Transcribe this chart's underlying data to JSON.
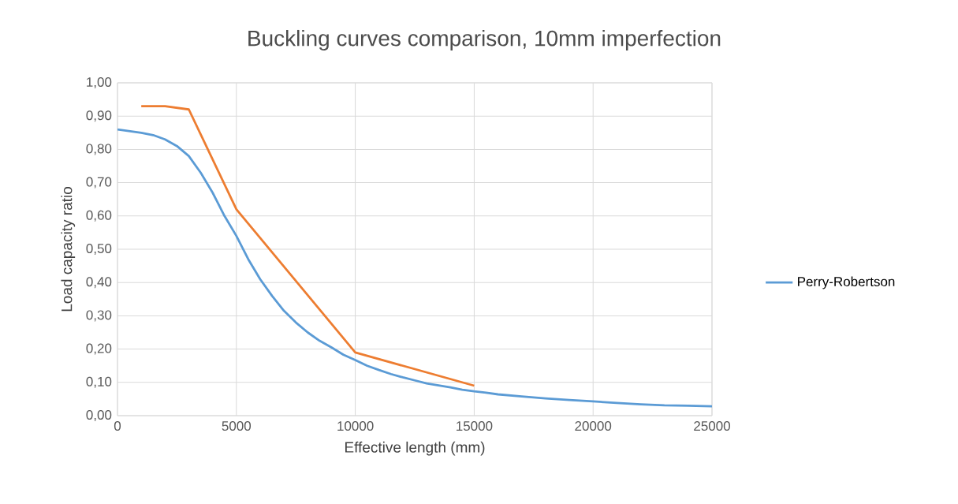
{
  "chart_data": {
    "type": "line",
    "title": "Buckling curves comparison, 10mm imperfection",
    "xlabel": "Effective length (mm)",
    "ylabel": "Load capacity ratio",
    "series": [
      {
        "name": "Perry-Robertson",
        "color": "#5b9bd5",
        "x": [
          0,
          500,
          1000,
          1500,
          2000,
          2500,
          3000,
          3500,
          4000,
          4500,
          5000,
          5500,
          6000,
          6500,
          7000,
          7500,
          8000,
          8500,
          9000,
          9500,
          10000,
          10500,
          11000,
          11500,
          12000,
          12500,
          13000,
          13500,
          14000,
          14500,
          15000,
          15500,
          16000,
          17000,
          18000,
          19000,
          20000,
          21000,
          22000,
          23000,
          24000,
          25000
        ],
        "values": [
          0.86,
          0.855,
          0.85,
          0.843,
          0.83,
          0.81,
          0.78,
          0.73,
          0.67,
          0.6,
          0.54,
          0.47,
          0.41,
          0.36,
          0.315,
          0.28,
          0.25,
          0.225,
          0.205,
          0.183,
          0.167,
          0.15,
          0.137,
          0.125,
          0.115,
          0.106,
          0.097,
          0.091,
          0.085,
          0.078,
          0.073,
          0.069,
          0.064,
          0.058,
          0.052,
          0.047,
          0.043,
          0.038,
          0.034,
          0.031,
          0.03,
          0.028
        ]
      },
      {
        "color": "#ed7d31",
        "x": [
          1000,
          2000,
          3000,
          5000,
          10000,
          15000
        ],
        "values": [
          0.93,
          0.93,
          0.92,
          0.62,
          0.19,
          0.09
        ]
      }
    ],
    "xlim": [
      0,
      25000
    ],
    "xticks": [
      0,
      5000,
      10000,
      15000,
      20000,
      25000
    ],
    "ylim": [
      0,
      1
    ],
    "yticks": [
      {
        "value": 0,
        "label": "0,00"
      },
      {
        "value": 0.1,
        "label": "0,10"
      },
      {
        "value": 0.2,
        "label": "0,20"
      },
      {
        "value": 0.3,
        "label": "0,30"
      },
      {
        "value": 0.4,
        "label": "0,40"
      },
      {
        "value": 0.5,
        "label": "0,50"
      },
      {
        "value": 0.6,
        "label": "0,60"
      },
      {
        "value": 0.7,
        "label": "0,70"
      },
      {
        "value": 0.8,
        "label": "0,80"
      },
      {
        "value": 0.9,
        "label": "0,90"
      },
      {
        "value": 1,
        "label": "1,00"
      }
    ],
    "grid": true,
    "legend": "right",
    "marker": "none",
    "line_style": "solid"
  }
}
